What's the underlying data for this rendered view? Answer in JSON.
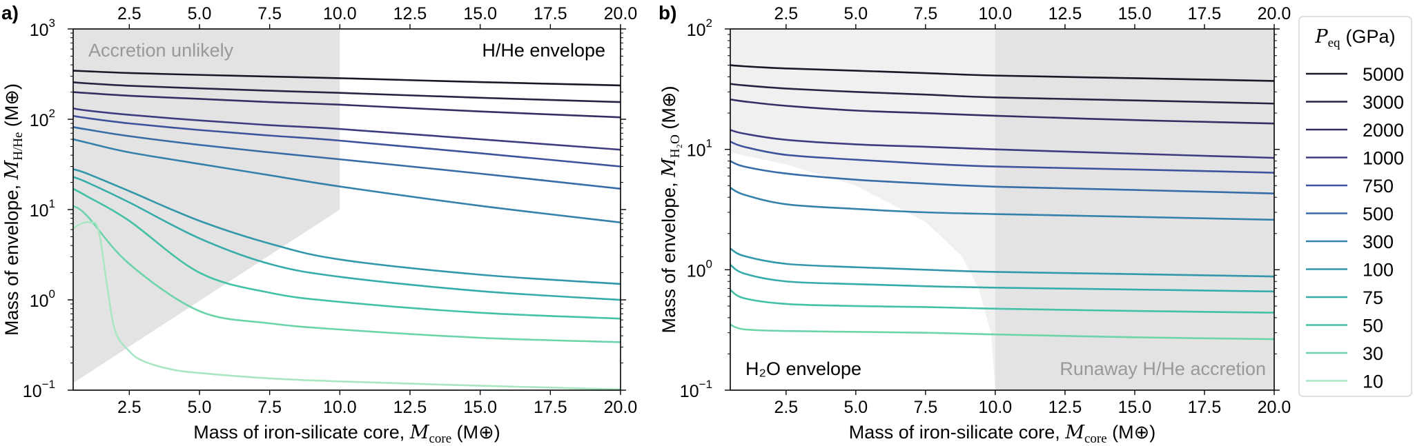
{
  "legend": {
    "title_symbol": "P",
    "title_sub": "eq",
    "title_unit": "(GPa)",
    "entries": [
      "5000",
      "3000",
      "2000",
      "1000",
      "750",
      "500",
      "300",
      "100",
      "75",
      "50",
      "30",
      "10"
    ],
    "colors": [
      "#1c1626",
      "#2c2142",
      "#382c62",
      "#3e3b80",
      "#3d539c",
      "#376ca7",
      "#3481ab",
      "#3297ab",
      "#35aca9",
      "#42c1a6",
      "#6cd4a9",
      "#a9e6c1"
    ]
  },
  "chart_data": [
    {
      "panel_label": "a)",
      "type": "line",
      "xlabel": {
        "prefix": "Mass of iron-silicate core, ",
        "symbol": "M",
        "sub": "core",
        "unit": " (M⊕)"
      },
      "ylabel": {
        "prefix": "Mass of envelope, ",
        "symbol": "M",
        "sub": "H/He",
        "unit": " (M⊕)"
      },
      "xlim": [
        0.5,
        20
      ],
      "ylim": [
        0.1,
        1000
      ],
      "yscale": "log",
      "x_ticks": [
        "2.5",
        "5.0",
        "7.5",
        "10.0",
        "12.5",
        "15.0",
        "17.5",
        "20.0"
      ],
      "y_ticks": [
        {
          "base": "10",
          "exp": "−1"
        },
        {
          "base": "10",
          "exp": "0"
        },
        {
          "base": "10",
          "exp": "1"
        },
        {
          "base": "10",
          "exp": "2"
        },
        {
          "base": "10",
          "exp": "3"
        }
      ],
      "annotations": [
        {
          "text": "Accretion unlikely",
          "color": "#999999"
        },
        {
          "text": "H/He envelope",
          "color": "#000000"
        }
      ],
      "shaded_regions": [
        {
          "name": "accretion-unlikely",
          "color": "#e3e3e3",
          "polygon": [
            [
              0.5,
              1000
            ],
            [
              10,
              1000
            ],
            [
              10,
              10
            ],
            [
              0.5,
              0.12
            ]
          ]
        }
      ],
      "x": [
        0.5,
        1,
        2.5,
        5,
        7.5,
        10,
        15,
        20
      ],
      "series": [
        {
          "name": "5000",
          "values": [
            345,
            340,
            325,
            310,
            297,
            285,
            258,
            237
          ]
        },
        {
          "name": "3000",
          "values": [
            257,
            250,
            235,
            220,
            207,
            196,
            173,
            155
          ]
        },
        {
          "name": "2000",
          "values": [
            200,
            195,
            182,
            168,
            155,
            145,
            122,
            105
          ]
        },
        {
          "name": "1000",
          "values": [
            132,
            125,
            112,
            97,
            86,
            78,
            60,
            46
          ]
        },
        {
          "name": "750",
          "values": [
            109,
            103,
            90,
            76,
            66,
            58,
            42,
            30
          ]
        },
        {
          "name": "500",
          "values": [
            82,
            77,
            65,
            52,
            43,
            36,
            25,
            17
          ]
        },
        {
          "name": "300",
          "values": [
            60,
            55,
            43,
            32,
            24,
            18,
            11,
            7.2
          ]
        },
        {
          "name": "100",
          "values": [
            28,
            25,
            16,
            7.5,
            4.2,
            2.8,
            1.9,
            1.5
          ]
        },
        {
          "name": "75",
          "values": [
            23,
            20,
            12,
            4.8,
            2.5,
            1.8,
            1.25,
            1.0
          ]
        },
        {
          "name": "50",
          "values": [
            17,
            14,
            7.5,
            2.0,
            1.2,
            0.95,
            0.72,
            0.62
          ]
        },
        {
          "name": "30",
          "values": [
            11,
            8.5,
            2.5,
            0.75,
            0.55,
            0.47,
            0.38,
            0.34
          ]
        },
        {
          "name": "10",
          "x": [
            0.5,
            0.8,
            1.1,
            1.4,
            1.7,
            2.0,
            2.5,
            3,
            4,
            5,
            7.5,
            10,
            15,
            20
          ],
          "values": [
            6.2,
            7.0,
            7.2,
            6.0,
            1.5,
            0.45,
            0.27,
            0.21,
            0.17,
            0.155,
            0.135,
            0.125,
            0.112,
            0.102
          ]
        }
      ]
    },
    {
      "panel_label": "b)",
      "type": "line",
      "xlabel": {
        "prefix": "Mass of iron-silicate core, ",
        "symbol": "M",
        "sub": "core",
        "unit": " (M⊕)"
      },
      "ylabel": {
        "prefix": "Mass of envelope, ",
        "symbol": "M",
        "sub": "H₂O",
        "unit": " (M⊕)"
      },
      "xlim": [
        0.5,
        20
      ],
      "ylim": [
        0.1,
        100
      ],
      "yscale": "log",
      "x_ticks": [
        "2.5",
        "5.0",
        "7.5",
        "10.0",
        "12.5",
        "15.0",
        "17.5",
        "20.0"
      ],
      "y_ticks": [
        {
          "base": "10",
          "exp": "−1"
        },
        {
          "base": "10",
          "exp": "0"
        },
        {
          "base": "10",
          "exp": "1"
        },
        {
          "base": "10",
          "exp": "2"
        }
      ],
      "annotations": [
        {
          "text": "H₂O envelope",
          "color": "#000000"
        },
        {
          "text": "Runaway H/He accretion",
          "color": "#999999"
        }
      ],
      "shaded_regions": [
        {
          "name": "upper-light-region",
          "color": "#f0f0f0",
          "polygon": [
            [
              0.5,
              100
            ],
            [
              20,
              100
            ],
            [
              20,
              0.1
            ],
            [
              10,
              0.1
            ],
            [
              9.85,
              0.3
            ],
            [
              9.4,
              0.7
            ],
            [
              8.8,
              1.3
            ],
            [
              7.5,
              2.5
            ],
            [
              5,
              5
            ],
            [
              2.5,
              7.5
            ],
            [
              0.5,
              9.4
            ]
          ]
        },
        {
          "name": "runaway-accretion",
          "color": "#e3e3e3",
          "polygon": [
            [
              10,
              100
            ],
            [
              20,
              100
            ],
            [
              20,
              0.1
            ],
            [
              10,
              0.1
            ]
          ]
        }
      ],
      "x": [
        0.5,
        1,
        2.5,
        5,
        7.5,
        10,
        15,
        20
      ],
      "series": [
        {
          "name": "5000",
          "values": [
            50,
            49,
            47,
            45,
            43,
            41,
            39,
            37
          ]
        },
        {
          "name": "3000",
          "values": [
            35,
            34,
            32,
            30,
            28.5,
            27,
            25.5,
            24
          ]
        },
        {
          "name": "2000",
          "values": [
            26,
            25,
            23,
            21,
            20,
            19,
            17.5,
            16.4
          ]
        },
        {
          "name": "1000",
          "values": [
            14.5,
            13.5,
            12,
            11,
            10.5,
            10,
            9.2,
            8.5
          ]
        },
        {
          "name": "750",
          "values": [
            11.6,
            10.5,
            9,
            8.2,
            7.6,
            7.2,
            6.8,
            6.4
          ]
        },
        {
          "name": "500",
          "values": [
            8,
            7.2,
            6.3,
            5.6,
            5.2,
            4.9,
            4.6,
            4.3
          ]
        },
        {
          "name": "300",
          "values": [
            4.8,
            4.2,
            3.5,
            3.2,
            3.0,
            2.9,
            2.75,
            2.6
          ]
        },
        {
          "name": "100",
          "values": [
            1.5,
            1.3,
            1.12,
            1.05,
            1.0,
            0.96,
            0.92,
            0.88
          ]
        },
        {
          "name": "75",
          "values": [
            1.1,
            0.93,
            0.8,
            0.76,
            0.73,
            0.71,
            0.685,
            0.66
          ]
        },
        {
          "name": "50",
          "values": [
            0.68,
            0.58,
            0.52,
            0.5,
            0.49,
            0.475,
            0.455,
            0.44
          ]
        },
        {
          "name": "30",
          "values": [
            0.35,
            0.32,
            0.31,
            0.305,
            0.3,
            0.29,
            0.275,
            0.265
          ]
        }
      ]
    }
  ]
}
